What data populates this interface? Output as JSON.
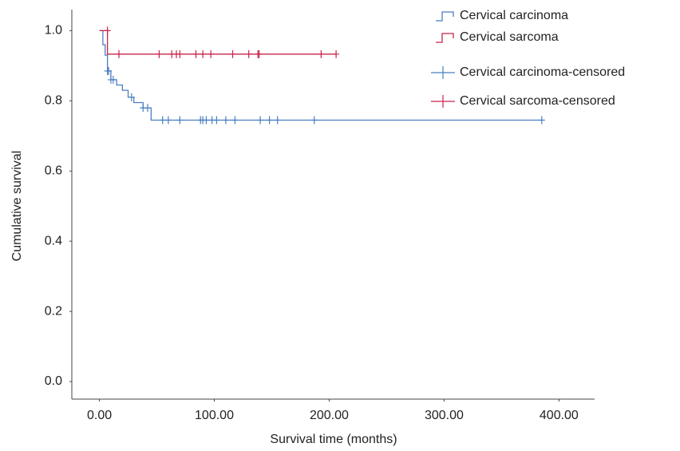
{
  "chart_data": {
    "type": "step",
    "xlabel": "Survival time (months)",
    "ylabel": "Cumulative survival",
    "xlim": [
      -24,
      431
    ],
    "ylim": [
      -0.05,
      1.06
    ],
    "xticks": [
      {
        "value": 0,
        "label": "0.00"
      },
      {
        "value": 100,
        "label": "100.00"
      },
      {
        "value": 200,
        "label": "200.00"
      },
      {
        "value": 300,
        "label": "300.00"
      },
      {
        "value": 400,
        "label": "400.00"
      }
    ],
    "yticks": [
      {
        "value": 0,
        "label": "0.0"
      },
      {
        "value": 0.2,
        "label": "0.2"
      },
      {
        "value": 0.4,
        "label": "0.4"
      },
      {
        "value": 0.6,
        "label": "0.6"
      },
      {
        "value": 0.8,
        "label": "0.8"
      },
      {
        "value": 1,
        "label": "1.0"
      }
    ],
    "legend": "upper right",
    "series": [
      {
        "name": "Cervical carcinoma",
        "color": "#4a7fc1",
        "marker": "step",
        "x": [
          0,
          3,
          5,
          7,
          10,
          15,
          20,
          25,
          30,
          38,
          45,
          385
        ],
        "values": [
          1.0,
          0.96,
          0.93,
          0.885,
          0.86,
          0.845,
          0.83,
          0.81,
          0.795,
          0.78,
          0.745,
          0.745
        ]
      },
      {
        "name": "Cervical sarcoma",
        "color": "#c8254a",
        "marker": "step",
        "x": [
          0,
          7,
          206
        ],
        "values": [
          1.0,
          0.933,
          0.933
        ]
      },
      {
        "name": "Cervical carcinoma-censored",
        "color": "#4a7fc1",
        "marker": "plus",
        "x": [
          7,
          8,
          10,
          12,
          28,
          38,
          42,
          55,
          60,
          70,
          88,
          90,
          93,
          98,
          102,
          110,
          118,
          140,
          148,
          155,
          187,
          385
        ],
        "values": [
          0.885,
          0.885,
          0.86,
          0.86,
          0.81,
          0.78,
          0.78,
          0.745,
          0.745,
          0.745,
          0.745,
          0.745,
          0.745,
          0.745,
          0.745,
          0.745,
          0.745,
          0.745,
          0.745,
          0.745,
          0.745,
          0.745
        ]
      },
      {
        "name": "Cervical sarcoma-censored",
        "color": "#c8254a",
        "marker": "plus",
        "x": [
          7,
          17,
          52,
          63,
          67,
          70,
          84,
          90,
          97,
          116,
          130,
          138,
          139,
          193,
          206
        ],
        "values": [
          1.0,
          0.933,
          0.933,
          0.933,
          0.933,
          0.933,
          0.933,
          0.933,
          0.933,
          0.933,
          0.933,
          0.933,
          0.933,
          0.933,
          0.933
        ]
      }
    ]
  }
}
